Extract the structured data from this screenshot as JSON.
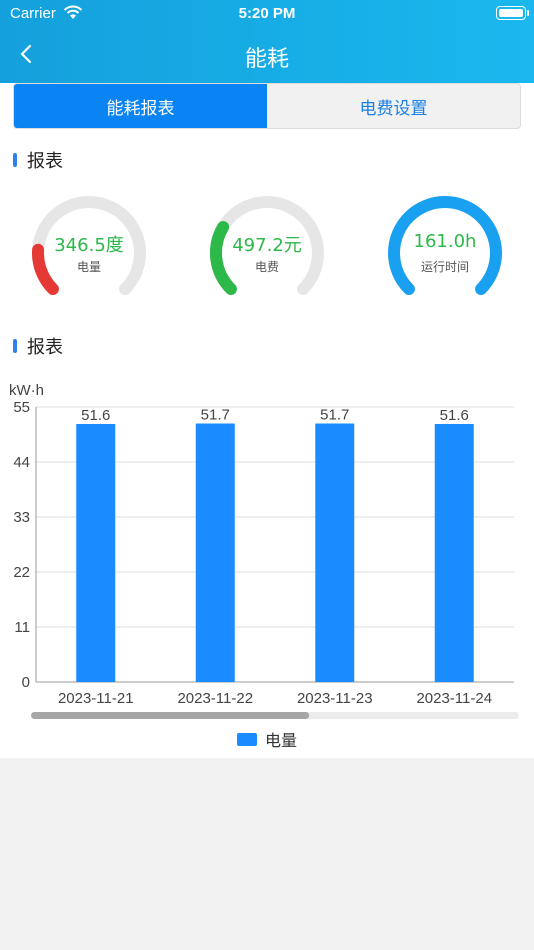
{
  "status_bar": {
    "carrier": "Carrier",
    "time": "5:20 PM"
  },
  "nav": {
    "title": "能耗"
  },
  "tabs": [
    {
      "label": "能耗报表",
      "active": true
    },
    {
      "label": "电费设置",
      "active": false
    }
  ],
  "sections": {
    "summary_title": "报表",
    "chart_title": "报表"
  },
  "gauges": [
    {
      "value": "346.5度",
      "label": "电量",
      "color": "#e53935",
      "value_color": "#2db84a",
      "fill": 0.18
    },
    {
      "value": "497.2元",
      "label": "电费",
      "color": "#2db84a",
      "value_color": "#2db84a",
      "fill": 0.28
    },
    {
      "value": "161.0h",
      "label": "运行时间",
      "color": "#1aa0f0",
      "value_color": "#2db84a",
      "fill": 1.0
    }
  ],
  "chart_data": {
    "type": "bar",
    "ylabel": "kW·h",
    "categories": [
      "2023-11-21",
      "2023-11-22",
      "2023-11-23",
      "2023-11-24"
    ],
    "series": [
      {
        "name": "电量",
        "values": [
          51.6,
          51.7,
          51.7,
          51.6
        ]
      }
    ],
    "ylim": [
      0,
      55
    ],
    "yticks": [
      0,
      11,
      22,
      33,
      44,
      55
    ],
    "bar_color": "#1a8cff",
    "grid": true,
    "legend": "bottom-center",
    "scroll_visible_fraction": 0.57
  }
}
